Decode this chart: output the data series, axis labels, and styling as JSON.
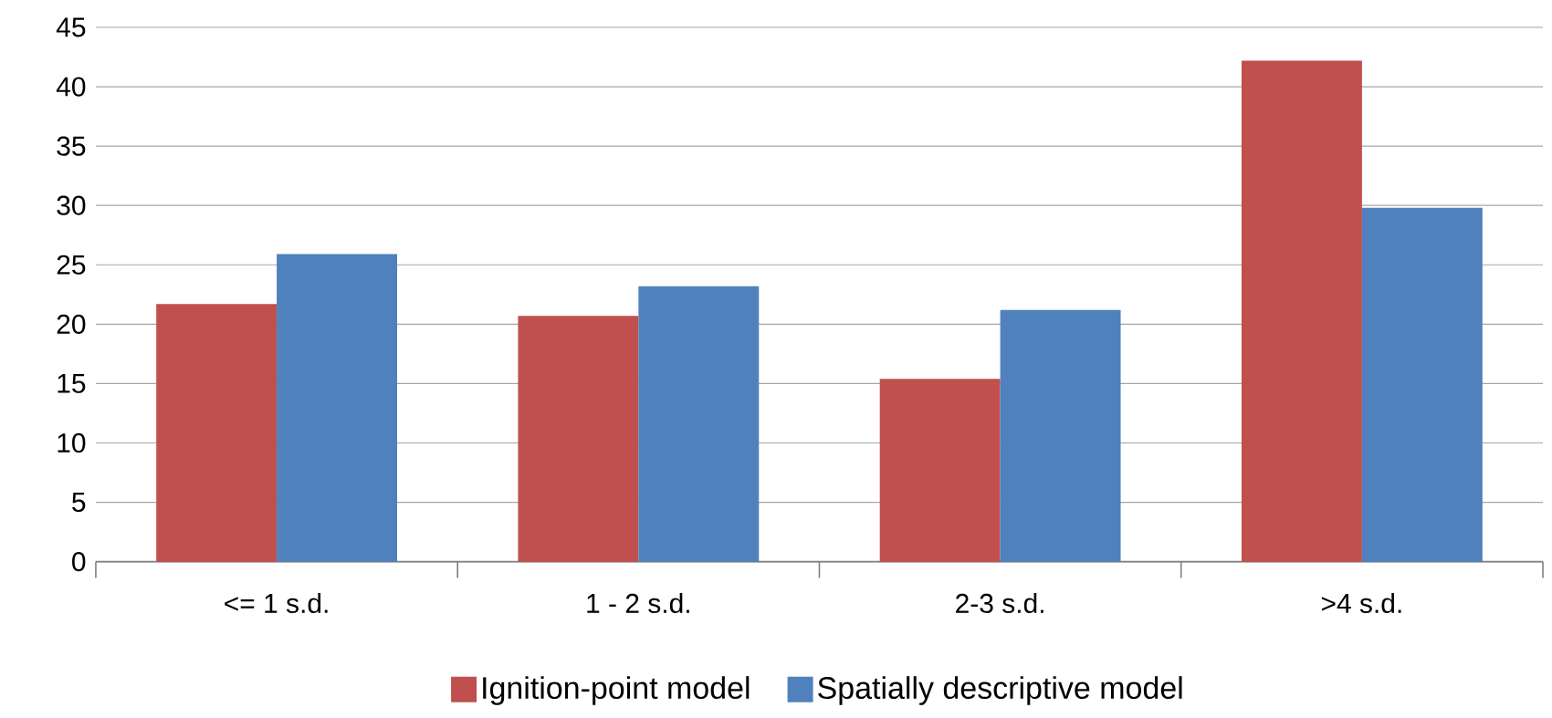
{
  "chart_data": {
    "type": "bar",
    "categories": [
      "<= 1 s.d.",
      "1 - 2 s.d.",
      "2-3 s.d.",
      ">4 s.d."
    ],
    "series": [
      {
        "name": "Ignition-point model",
        "color": "#c0504d",
        "values": [
          21.7,
          20.7,
          15.4,
          42.2
        ]
      },
      {
        "name": "Spatially descriptive model",
        "color": "#4f81bd",
        "values": [
          25.9,
          23.2,
          21.2,
          29.8
        ]
      }
    ],
    "ylim": [
      0,
      45
    ],
    "yticks": [
      0,
      5,
      10,
      15,
      20,
      25,
      30,
      35,
      40,
      45
    ],
    "grid": "y",
    "legend": "bottom"
  }
}
